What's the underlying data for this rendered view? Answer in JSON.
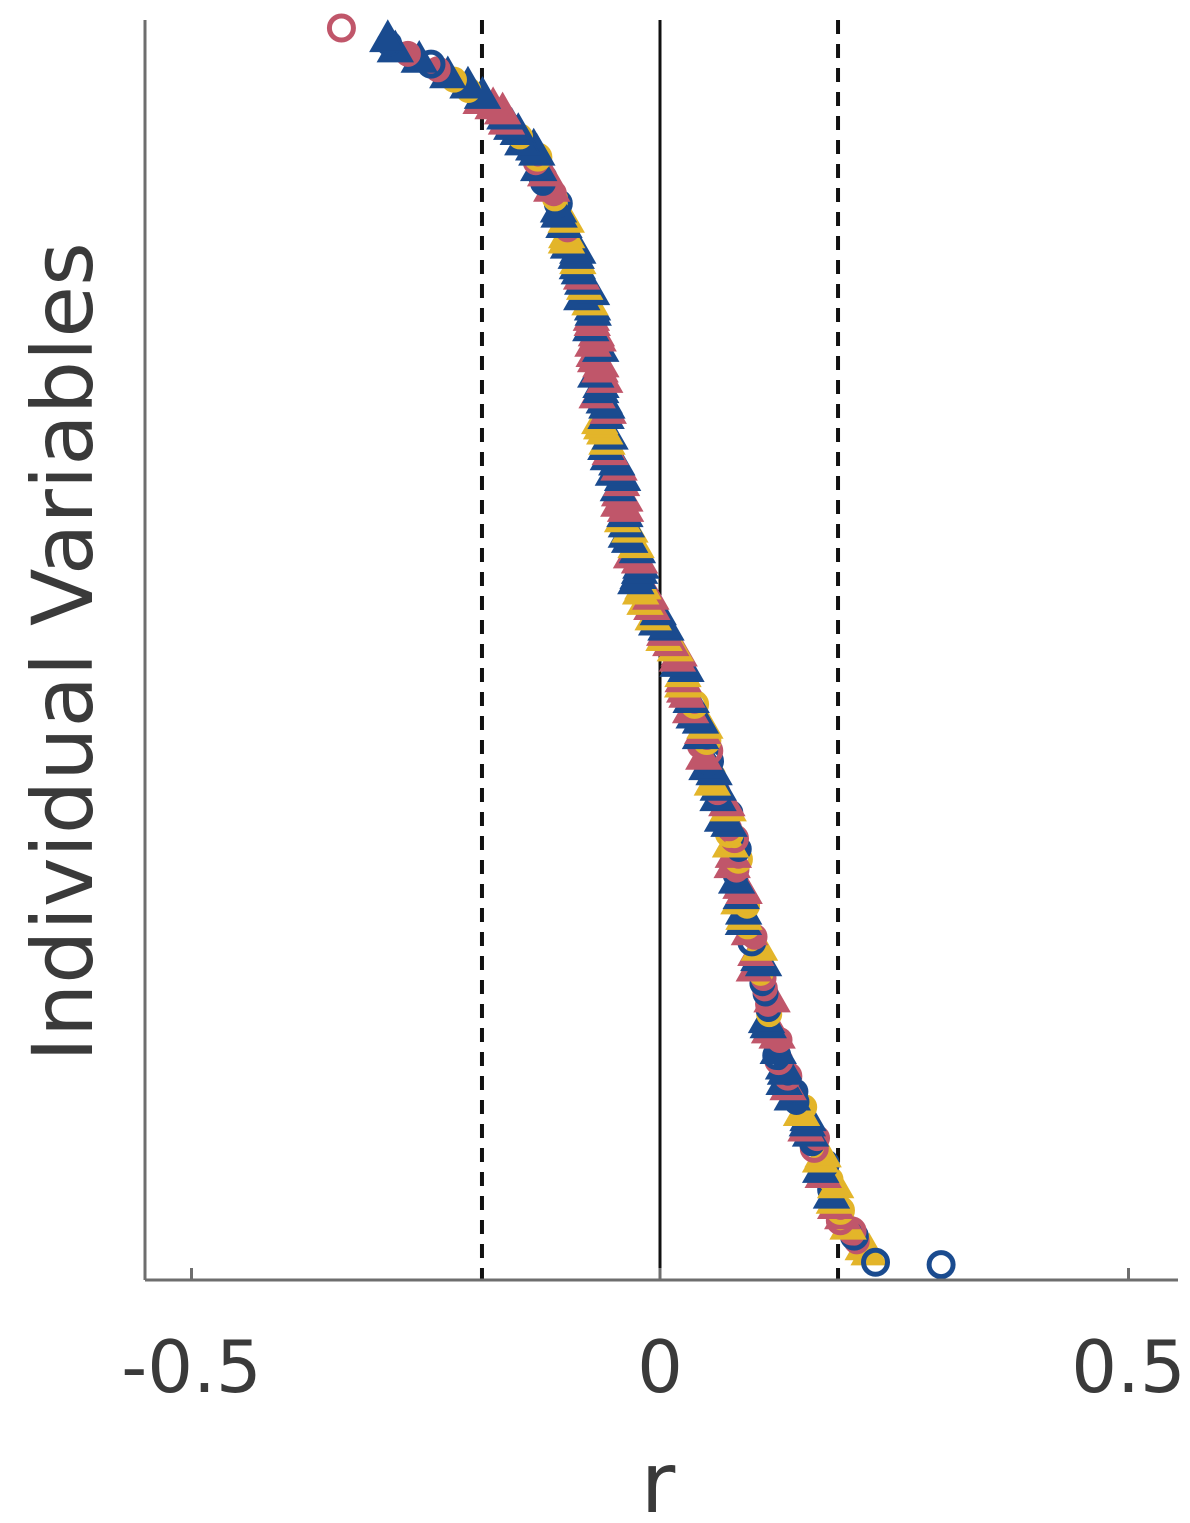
{
  "chart_data": {
    "type": "scatter",
    "title": "",
    "xlabel": "r",
    "ylabel": "Individual Variables",
    "xlim": [
      -0.55,
      0.55
    ],
    "xticks": [
      -0.5,
      0,
      0.5
    ],
    "xtick_labels": [
      "-0.5",
      "0",
      "0.5"
    ],
    "y_ticks_shown": false,
    "grid": false,
    "reference_lines": [
      {
        "x": -0.19,
        "style": "dashed",
        "color": "#111111"
      },
      {
        "x": 0.0,
        "style": "solid",
        "color": "#111111"
      },
      {
        "x": 0.19,
        "style": "dashed",
        "color": "#111111"
      }
    ],
    "colors": {
      "red": "#c0566a",
      "blue": "#1a4b8f",
      "yellow": "#e3b52a"
    },
    "n_variables": 240,
    "series": [
      {
        "color": "blue",
        "marker": "circle-open",
        "points": [
          [
            0.3,
            0.5
          ],
          [
            0.23,
            0.95
          ]
        ]
      },
      {
        "color": "red",
        "marker": "circle-open",
        "points": [
          [
            -0.34,
            240
          ]
        ]
      }
    ],
    "curve_profile": {
      "x_at_index": [
        [
          1,
          0.23
        ],
        [
          4,
          0.22
        ],
        [
          8,
          0.2
        ],
        [
          15,
          0.185
        ],
        [
          22,
          0.17
        ],
        [
          30,
          0.15
        ],
        [
          40,
          0.13
        ],
        [
          55,
          0.11
        ],
        [
          70,
          0.09
        ],
        [
          85,
          0.075
        ],
        [
          100,
          0.05
        ],
        [
          110,
          0.035
        ],
        [
          120,
          0.015
        ],
        [
          125,
          0.0
        ],
        [
          135,
          -0.025
        ],
        [
          150,
          -0.04
        ],
        [
          165,
          -0.06
        ],
        [
          180,
          -0.07
        ],
        [
          195,
          -0.085
        ],
        [
          205,
          -0.11
        ],
        [
          215,
          -0.13
        ],
        [
          222,
          -0.16
        ],
        [
          228,
          -0.2
        ],
        [
          232,
          -0.24
        ],
        [
          236,
          -0.28
        ],
        [
          239,
          -0.3
        ]
      ]
    }
  }
}
